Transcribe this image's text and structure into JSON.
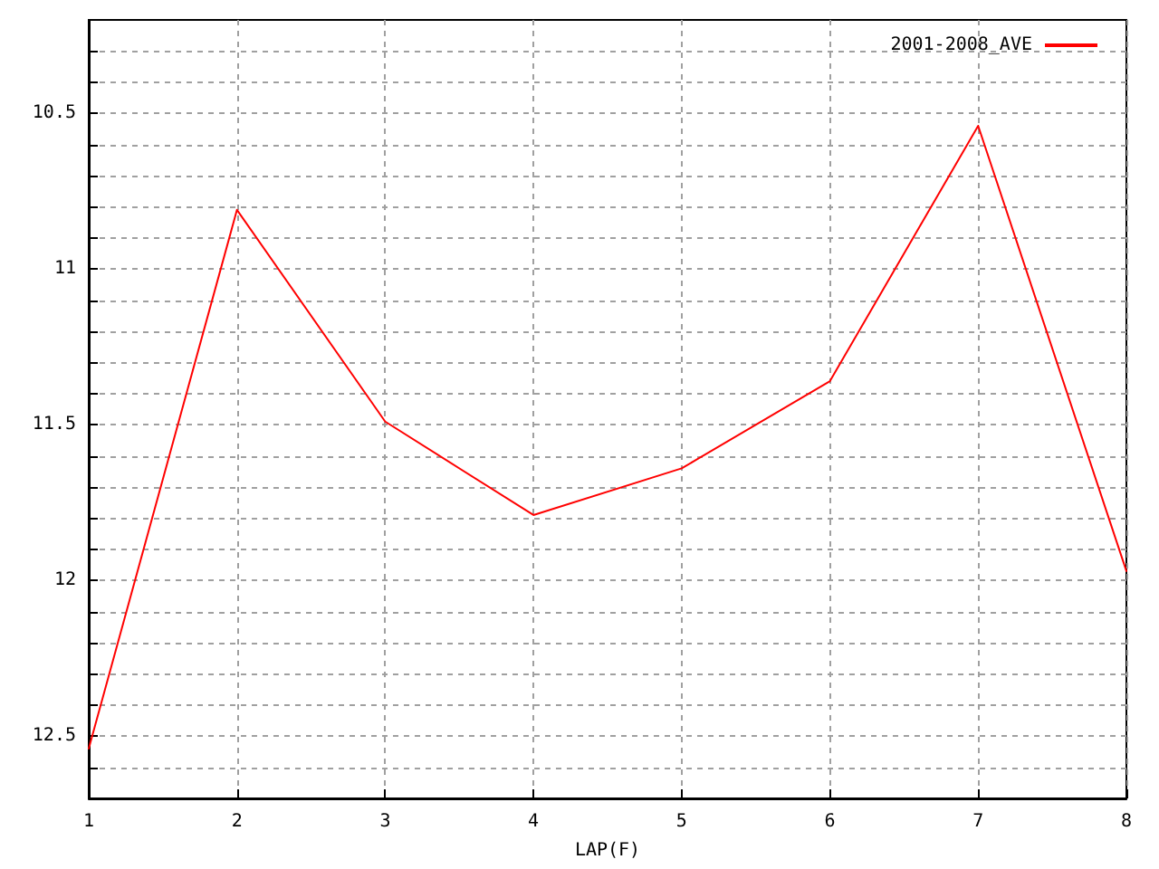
{
  "chart_data": {
    "type": "line",
    "xlabel": "LAP(F)",
    "x": [
      1,
      2,
      3,
      4,
      5,
      6,
      7,
      8
    ],
    "series": [
      {
        "name": "2001-2008_AVE",
        "color": "#ff0000",
        "values": [
          12.54,
          10.81,
          11.49,
          11.79,
          11.64,
          11.36,
          10.54,
          11.97
        ]
      }
    ],
    "xlim": [
      1,
      8
    ],
    "xticks": [
      1,
      2,
      3,
      4,
      5,
      6,
      7,
      8
    ],
    "ylim": [
      12.7,
      10.2
    ],
    "yticks": [
      {
        "value": 10.3,
        "label": null
      },
      {
        "value": 10.4,
        "label": null
      },
      10.5,
      {
        "value": 10.6,
        "label": null
      },
      {
        "value": 10.7,
        "label": null
      },
      {
        "value": 10.8,
        "label": null
      },
      {
        "value": 10.9,
        "label": null
      },
      11,
      {
        "value": 11.1,
        "label": null
      },
      {
        "value": 11.2,
        "label": null
      },
      {
        "value": 11.3,
        "label": null
      },
      {
        "value": 11.4,
        "label": null
      },
      11.5,
      {
        "value": 11.6,
        "label": null
      },
      {
        "value": 11.7,
        "label": null
      },
      {
        "value": 11.8,
        "label": null
      },
      {
        "value": 11.9,
        "label": null
      },
      12,
      {
        "value": 12.1,
        "label": null
      },
      {
        "value": 12.2,
        "label": null
      },
      {
        "value": 12.3,
        "label": null
      },
      {
        "value": 12.4,
        "label": null
      },
      12.5,
      {
        "value": 12.6,
        "label": null
      }
    ],
    "grid": true,
    "legend": "top right",
    "marker": "none",
    "line_style": "solid"
  }
}
